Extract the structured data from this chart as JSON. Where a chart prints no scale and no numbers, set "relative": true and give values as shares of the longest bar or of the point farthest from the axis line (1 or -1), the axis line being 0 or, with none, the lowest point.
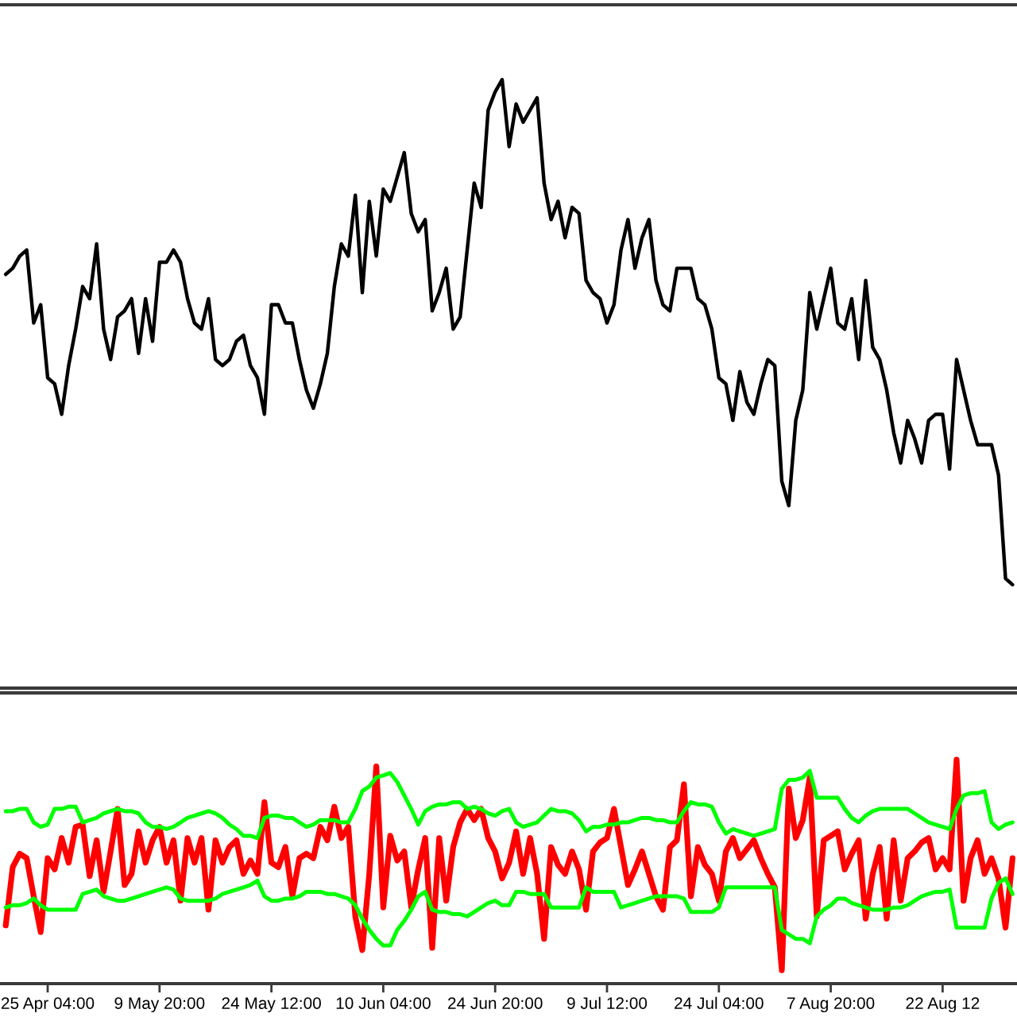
{
  "chart_data": [
    {
      "type": "line",
      "relative": true,
      "categories": [
        null,
        null,
        null,
        null,
        null,
        null,
        null,
        null,
        null,
        null,
        null,
        null,
        null,
        null,
        null,
        null,
        null,
        null,
        null,
        null,
        null,
        null,
        null,
        null,
        null,
        null,
        null,
        null,
        null,
        null,
        null,
        null,
        null,
        null,
        null,
        null,
        null,
        null,
        null,
        null,
        null,
        null,
        null,
        null,
        null,
        null,
        null,
        null,
        null,
        null,
        null,
        null,
        null,
        null,
        null,
        null,
        null,
        null,
        null,
        null,
        null,
        null,
        null,
        null,
        null,
        null,
        null,
        null,
        null,
        null,
        null,
        null,
        null,
        null,
        null,
        null,
        null,
        null,
        null,
        null,
        null,
        null,
        null,
        null,
        null,
        null,
        null,
        null,
        null,
        null,
        null,
        null,
        null,
        null,
        null,
        null,
        null,
        null,
        null,
        null,
        null,
        null,
        null,
        null,
        null,
        null,
        null,
        null,
        null,
        null,
        null,
        null,
        null,
        null,
        null,
        null,
        null,
        null,
        null,
        null,
        null,
        null,
        null,
        null,
        null,
        null,
        null,
        null,
        null,
        null,
        null,
        null,
        null,
        null,
        null,
        null,
        null,
        null,
        null,
        null,
        null,
        null,
        null,
        null,
        null
      ],
      "series": [
        {
          "color": "#000000",
          "values": [
            0.68,
            0.69,
            0.71,
            0.72,
            0.6,
            0.63,
            0.51,
            0.5,
            0.45,
            0.53,
            0.59,
            0.66,
            0.64,
            0.73,
            0.59,
            0.54,
            0.61,
            0.62,
            0.64,
            0.55,
            0.64,
            0.57,
            0.7,
            0.7,
            0.72,
            0.7,
            0.64,
            0.6,
            0.59,
            0.64,
            0.54,
            0.53,
            0.54,
            0.57,
            0.58,
            0.53,
            0.51,
            0.45,
            0.63,
            0.63,
            0.6,
            0.6,
            0.54,
            0.49,
            0.46,
            0.5,
            0.55,
            0.66,
            0.73,
            0.71,
            0.81,
            0.65,
            0.8,
            0.71,
            0.82,
            0.8,
            0.84,
            0.88,
            0.78,
            0.75,
            0.77,
            0.62,
            0.65,
            0.69,
            0.59,
            0.61,
            0.72,
            0.83,
            0.79,
            0.95,
            0.98,
            1.0,
            0.89,
            0.96,
            0.93,
            0.95,
            0.97,
            0.83,
            0.77,
            0.8,
            0.74,
            0.79,
            0.78,
            0.67,
            0.65,
            0.64,
            0.6,
            0.63,
            0.72,
            0.77,
            0.69,
            0.74,
            0.77,
            0.67,
            0.63,
            0.62,
            0.69,
            0.69,
            0.69,
            0.64,
            0.63,
            0.59,
            0.51,
            0.5,
            0.44,
            0.52,
            0.47,
            0.45,
            0.5,
            0.54,
            0.53,
            0.34,
            0.3,
            0.44,
            0.49,
            0.65,
            0.59,
            0.64,
            0.69,
            0.6,
            0.59,
            0.64,
            0.54,
            0.67,
            0.56,
            0.54,
            0.49,
            0.42,
            0.37,
            0.44,
            0.41,
            0.37,
            0.44,
            0.45,
            0.45,
            0.36,
            0.54,
            0.49,
            0.44,
            0.4,
            0.4,
            0.4,
            0.35,
            0.18,
            0.17
          ]
        }
      ]
    },
    {
      "type": "line",
      "relative": true,
      "tick_labels": "x",
      "categories": [
        null,
        null,
        null,
        null,
        null,
        null,
        "25 Apr 04:00",
        null,
        null,
        null,
        null,
        null,
        null,
        null,
        null,
        null,
        null,
        null,
        null,
        null,
        null,
        null,
        "9 May 20:00",
        null,
        null,
        null,
        null,
        null,
        null,
        null,
        null,
        null,
        null,
        null,
        null,
        null,
        null,
        null,
        "24 May 12:00",
        null,
        null,
        null,
        null,
        null,
        null,
        null,
        null,
        null,
        null,
        null,
        null,
        null,
        null,
        null,
        "10 Jun 04:00",
        null,
        null,
        null,
        null,
        null,
        null,
        null,
        null,
        null,
        null,
        null,
        null,
        null,
        null,
        null,
        "24 Jun 20:00",
        null,
        null,
        null,
        null,
        null,
        null,
        null,
        null,
        null,
        null,
        null,
        null,
        null,
        null,
        null,
        "9 Jul 12:00",
        null,
        null,
        null,
        null,
        null,
        null,
        null,
        null,
        null,
        null,
        null,
        null,
        null,
        null,
        null,
        "24 Jul 04:00",
        null,
        null,
        null,
        null,
        null,
        null,
        null,
        null,
        null,
        null,
        null,
        null,
        null,
        null,
        null,
        "7 Aug 20:00",
        null,
        null,
        null,
        null,
        null,
        null,
        null,
        null,
        null,
        null,
        null,
        null,
        null,
        null,
        null,
        "22 Aug 12",
        null,
        null,
        null,
        null,
        null,
        null,
        null,
        null,
        null,
        null
      ],
      "series": [
        {
          "color": "#ff0000",
          "values": [
            0.26,
            0.52,
            0.58,
            0.56,
            0.39,
            0.23,
            0.56,
            0.51,
            0.65,
            0.54,
            0.7,
            0.71,
            0.48,
            0.64,
            0.41,
            0.59,
            0.78,
            0.44,
            0.49,
            0.68,
            0.54,
            0.64,
            0.7,
            0.54,
            0.64,
            0.37,
            0.65,
            0.54,
            0.65,
            0.33,
            0.64,
            0.54,
            0.61,
            0.64,
            0.49,
            0.55,
            0.49,
            0.81,
            0.54,
            0.52,
            0.61,
            0.39,
            0.56,
            0.58,
            0.56,
            0.7,
            0.64,
            0.79,
            0.65,
            0.7,
            0.3,
            0.15,
            0.49,
            0.97,
            0.34,
            0.66,
            0.55,
            0.59,
            0.34,
            0.51,
            0.65,
            0.16,
            0.65,
            0.37,
            0.61,
            0.72,
            0.78,
            0.73,
            0.78,
            0.65,
            0.59,
            0.47,
            0.54,
            0.68,
            0.49,
            0.65,
            0.49,
            0.2,
            0.61,
            0.53,
            0.49,
            0.59,
            0.51,
            0.33,
            0.59,
            0.63,
            0.65,
            0.78,
            0.61,
            0.44,
            0.51,
            0.59,
            0.49,
            0.39,
            0.33,
            0.61,
            0.64,
            0.89,
            0.39,
            0.61,
            0.53,
            0.49,
            0.37,
            0.59,
            0.65,
            0.56,
            0.6,
            0.64,
            0.56,
            0.49,
            0.43,
            0.06,
            0.87,
            0.65,
            0.73,
            0.92,
            0.3,
            0.64,
            0.66,
            0.68,
            0.51,
            0.58,
            0.64,
            0.29,
            0.49,
            0.61,
            0.29,
            0.64,
            0.37,
            0.56,
            0.59,
            0.63,
            0.65,
            0.51,
            0.56,
            0.51,
            1.0,
            0.37,
            0.56,
            0.64,
            0.49,
            0.56,
            0.47,
            0.25,
            0.56
          ]
        },
        {
          "color": "#00ff00",
          "values": [
            0.77,
            0.77,
            0.78,
            0.78,
            0.72,
            0.7,
            0.71,
            0.78,
            0.78,
            0.79,
            0.79,
            0.72,
            0.73,
            0.74,
            0.76,
            0.77,
            0.78,
            0.77,
            0.77,
            0.76,
            0.72,
            0.7,
            0.7,
            0.69,
            0.7,
            0.72,
            0.74,
            0.75,
            0.76,
            0.77,
            0.76,
            0.74,
            0.71,
            0.69,
            0.66,
            0.66,
            0.65,
            0.74,
            0.75,
            0.75,
            0.74,
            0.74,
            0.72,
            0.7,
            0.71,
            0.73,
            0.73,
            0.73,
            0.72,
            0.72,
            0.78,
            0.86,
            0.88,
            0.92,
            0.93,
            0.94,
            0.9,
            0.84,
            0.78,
            0.71,
            0.77,
            0.79,
            0.8,
            0.8,
            0.81,
            0.81,
            0.78,
            0.79,
            0.78,
            0.76,
            0.75,
            0.77,
            0.78,
            0.72,
            0.7,
            0.71,
            0.72,
            0.75,
            0.78,
            0.77,
            0.77,
            0.76,
            0.73,
            0.68,
            0.7,
            0.7,
            0.71,
            0.71,
            0.72,
            0.72,
            0.73,
            0.74,
            0.74,
            0.73,
            0.73,
            0.72,
            0.72,
            0.77,
            0.81,
            0.8,
            0.8,
            0.79,
            0.72,
            0.67,
            0.69,
            0.68,
            0.67,
            0.66,
            0.67,
            0.68,
            0.69,
            0.87,
            0.91,
            0.91,
            0.92,
            0.95,
            0.83,
            0.83,
            0.83,
            0.83,
            0.78,
            0.74,
            0.72,
            0.75,
            0.77,
            0.78,
            0.78,
            0.78,
            0.78,
            0.78,
            0.76,
            0.74,
            0.72,
            0.71,
            0.7,
            0.69,
            0.78,
            0.84,
            0.85,
            0.85,
            0.86,
            0.72,
            0.69,
            0.71,
            0.72
          ]
        },
        {
          "color": "#00ff00",
          "values": [
            0.34,
            0.35,
            0.35,
            0.36,
            0.38,
            0.35,
            0.33,
            0.33,
            0.33,
            0.33,
            0.33,
            0.4,
            0.41,
            0.42,
            0.39,
            0.38,
            0.37,
            0.37,
            0.38,
            0.39,
            0.4,
            0.41,
            0.42,
            0.43,
            0.42,
            0.38,
            0.37,
            0.37,
            0.37,
            0.37,
            0.38,
            0.4,
            0.41,
            0.42,
            0.43,
            0.44,
            0.46,
            0.39,
            0.37,
            0.37,
            0.38,
            0.38,
            0.39,
            0.41,
            0.41,
            0.41,
            0.4,
            0.4,
            0.39,
            0.38,
            0.35,
            0.29,
            0.24,
            0.2,
            0.17,
            0.17,
            0.24,
            0.28,
            0.33,
            0.39,
            0.41,
            0.33,
            0.32,
            0.32,
            0.31,
            0.31,
            0.3,
            0.32,
            0.34,
            0.36,
            0.37,
            0.35,
            0.35,
            0.41,
            0.41,
            0.4,
            0.4,
            0.4,
            0.34,
            0.34,
            0.34,
            0.34,
            0.34,
            0.43,
            0.41,
            0.41,
            0.41,
            0.41,
            0.34,
            0.35,
            0.36,
            0.37,
            0.38,
            0.39,
            0.39,
            0.39,
            0.39,
            0.38,
            0.32,
            0.32,
            0.32,
            0.32,
            0.34,
            0.43,
            0.43,
            0.43,
            0.43,
            0.43,
            0.43,
            0.43,
            0.43,
            0.24,
            0.22,
            0.2,
            0.2,
            0.18,
            0.3,
            0.33,
            0.35,
            0.38,
            0.38,
            0.36,
            0.35,
            0.34,
            0.33,
            0.33,
            0.33,
            0.34,
            0.34,
            0.35,
            0.37,
            0.39,
            0.4,
            0.41,
            0.41,
            0.42,
            0.25,
            0.25,
            0.25,
            0.25,
            0.25,
            0.38,
            0.45,
            0.47,
            0.4
          ]
        }
      ]
    }
  ]
}
